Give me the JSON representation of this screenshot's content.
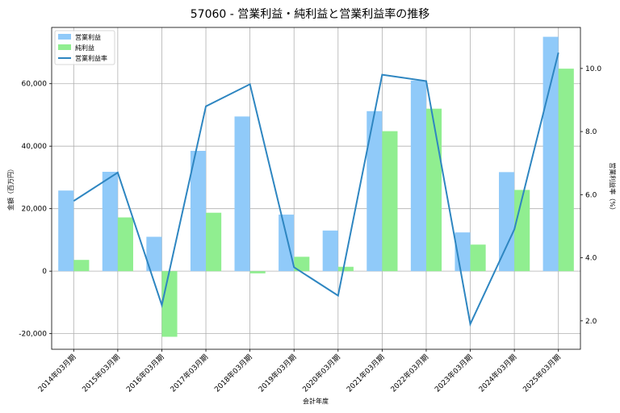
{
  "chart_data": {
    "type": "bar",
    "title": "57060 - 営業利益・純利益と営業利益率の推移",
    "xlabel": "会計年度",
    "ylabel": "金額（百万円）",
    "y2label": "営業利益率（%）",
    "categories": [
      "2014年03月期",
      "2015年03月期",
      "2016年03月期",
      "2017年03月期",
      "2018年03月期",
      "2019年03月期",
      "2020年03月期",
      "2021年03月期",
      "2022年03月期",
      "2023年03月期",
      "2024年03月期",
      "2025年03月期"
    ],
    "ylim": [
      -25000,
      78000
    ],
    "y2lim": [
      1.1,
      11.3
    ],
    "yticks": [
      -20000,
      0,
      20000,
      40000,
      60000
    ],
    "yticklabels": [
      "-20,000",
      "0",
      "20,000",
      "40,000",
      "60,000"
    ],
    "y2ticks": [
      2.0,
      4.0,
      6.0,
      8.0,
      10.0
    ],
    "y2ticklabels": [
      "2.0",
      "4.0",
      "6.0",
      "8.0",
      "10.0"
    ],
    "grid": true,
    "legend_position": "top-left",
    "series": [
      {
        "name": "営業利益",
        "kind": "bar",
        "color": "#90CAF9",
        "values": [
          25800,
          31800,
          11000,
          38500,
          49500,
          18100,
          13000,
          51200,
          61000,
          12400,
          31700,
          75000
        ]
      },
      {
        "name": "純利益",
        "kind": "bar",
        "color": "#90EE90",
        "values": [
          3600,
          17200,
          -21000,
          18700,
          -700,
          4600,
          1400,
          44800,
          52000,
          8500,
          26000,
          64800
        ]
      },
      {
        "name": "営業利益率",
        "kind": "line",
        "axis": "right",
        "color": "#2E86C1",
        "values": [
          5.8,
          6.7,
          2.5,
          8.8,
          9.5,
          3.7,
          2.8,
          9.8,
          9.6,
          1.9,
          4.9,
          10.5
        ]
      }
    ]
  }
}
